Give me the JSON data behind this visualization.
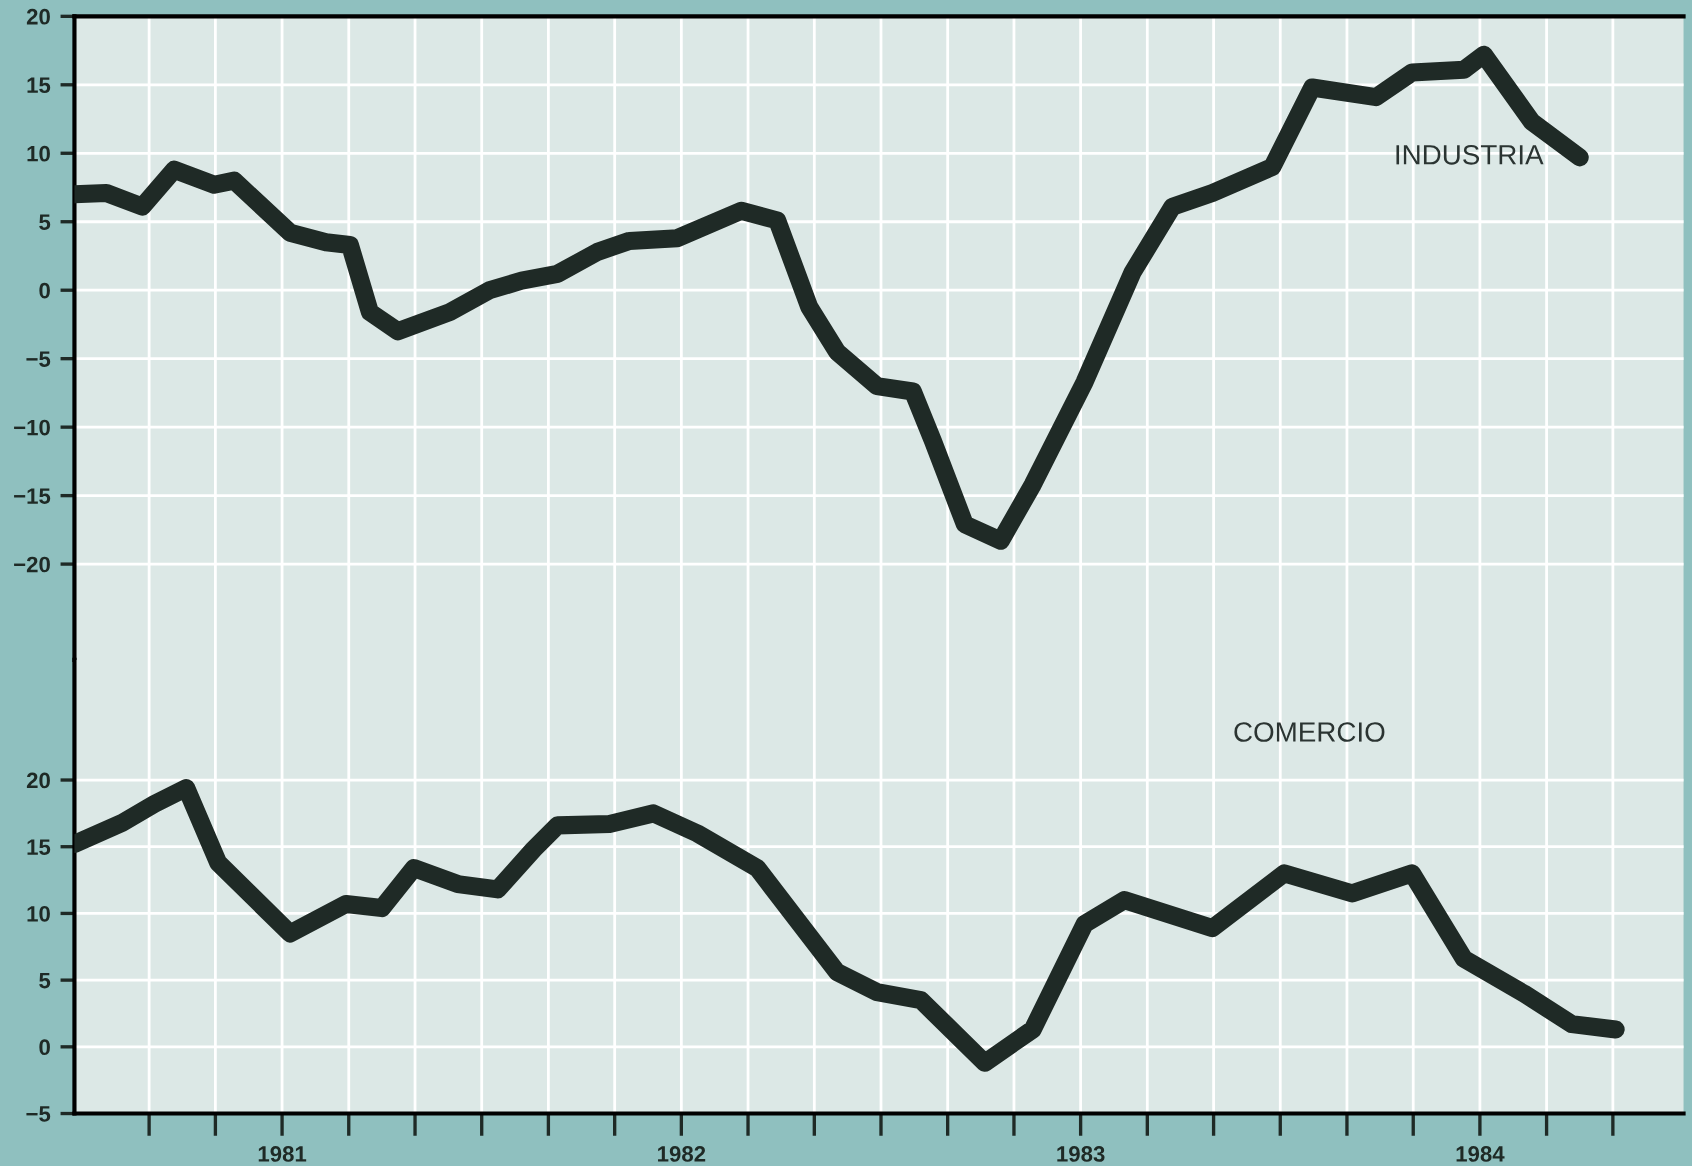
{
  "chart_data": [
    {
      "type": "line",
      "grid": true,
      "tick_labels": "y",
      "xlim": [
        1980.48,
        1984.51
      ],
      "ylim": [
        -27,
        20
      ],
      "yticks": [
        20,
        15,
        10,
        5,
        0,
        -5,
        -10,
        -15,
        -20
      ],
      "xticks": [
        {
          "value": 1980.667,
          "label": null
        },
        {
          "value": 1980.833,
          "label": null
        },
        {
          "value": 1981,
          "label": null
        },
        {
          "value": 1981.167,
          "label": null
        },
        {
          "value": 1981.333,
          "label": null
        },
        {
          "value": 1981.5,
          "label": null
        },
        {
          "value": 1981.667,
          "label": null
        },
        {
          "value": 1981.833,
          "label": null
        },
        {
          "value": 1982,
          "label": null
        },
        {
          "value": 1982.167,
          "label": null
        },
        {
          "value": 1982.333,
          "label": null
        },
        {
          "value": 1982.5,
          "label": null
        },
        {
          "value": 1982.667,
          "label": null
        },
        {
          "value": 1982.833,
          "label": null
        },
        {
          "value": 1983,
          "label": null
        },
        {
          "value": 1983.167,
          "label": null
        },
        {
          "value": 1983.333,
          "label": null
        },
        {
          "value": 1983.5,
          "label": null
        },
        {
          "value": 1983.667,
          "label": null
        },
        {
          "value": 1983.833,
          "label": null
        },
        {
          "value": 1984,
          "label": null
        },
        {
          "value": 1984.167,
          "label": null
        },
        {
          "value": 1984.333,
          "label": null
        }
      ],
      "series": [
        {
          "name": "INDUSTRIA",
          "color": "#1f2a26",
          "x": [
            1980.48,
            1980.56,
            1980.65,
            1980.73,
            1980.83,
            1980.88,
            1981.02,
            1981.11,
            1981.17,
            1981.22,
            1981.29,
            1981.42,
            1981.52,
            1981.6,
            1981.69,
            1981.79,
            1981.87,
            1981.99,
            1982.15,
            1982.24,
            1982.32,
            1982.39,
            1982.49,
            1982.58,
            1982.63,
            1982.71,
            1982.8,
            1982.88,
            1983.01,
            1983.13,
            1983.23,
            1983.33,
            1983.48,
            1983.58,
            1983.74,
            1983.83,
            1983.96,
            1984.01,
            1984.13,
            1984.25
          ],
          "values": [
            7.0,
            7.1,
            6.1,
            8.8,
            7.7,
            8.0,
            4.2,
            3.5,
            3.3,
            -1.6,
            -3.0,
            -1.6,
            0,
            0.7,
            1.2,
            2.8,
            3.6,
            3.8,
            5.8,
            5.1,
            -1.2,
            -4.5,
            -7.0,
            -7.4,
            -11.0,
            -17.1,
            -18.3,
            -14.2,
            -6.7,
            1.3,
            6.1,
            7.1,
            9.0,
            14.8,
            14.1,
            15.9,
            16.1,
            17.2,
            12.3,
            9.7
          ]
        }
      ]
    },
    {
      "type": "line",
      "grid": true,
      "xlim": [
        1980.48,
        1984.51
      ],
      "ylim": [
        -5,
        29
      ],
      "yticks": [
        20,
        15,
        10,
        5,
        0,
        -5
      ],
      "xticks": [
        {
          "value": 1980.667,
          "label": null
        },
        {
          "value": 1980.833,
          "label": null
        },
        {
          "value": 1981,
          "label": "1981"
        },
        {
          "value": 1981.167,
          "label": null
        },
        {
          "value": 1981.333,
          "label": null
        },
        {
          "value": 1981.5,
          "label": null
        },
        {
          "value": 1981.667,
          "label": null
        },
        {
          "value": 1981.833,
          "label": null
        },
        {
          "value": 1982,
          "label": "1982"
        },
        {
          "value": 1982.167,
          "label": null
        },
        {
          "value": 1982.333,
          "label": null
        },
        {
          "value": 1982.5,
          "label": null
        },
        {
          "value": 1982.667,
          "label": null
        },
        {
          "value": 1982.833,
          "label": null
        },
        {
          "value": 1983,
          "label": "1983"
        },
        {
          "value": 1983.167,
          "label": null
        },
        {
          "value": 1983.333,
          "label": null
        },
        {
          "value": 1983.5,
          "label": null
        },
        {
          "value": 1983.667,
          "label": null
        },
        {
          "value": 1983.833,
          "label": null
        },
        {
          "value": 1984,
          "label": "1984"
        },
        {
          "value": 1984.167,
          "label": null
        },
        {
          "value": 1984.333,
          "label": null
        }
      ],
      "series": [
        {
          "name": "COMERCIO",
          "color": "#1f2a26",
          "x": [
            1980.48,
            1980.6,
            1980.68,
            1980.76,
            1980.84,
            1981.02,
            1981.16,
            1981.25,
            1981.33,
            1981.44,
            1981.54,
            1981.63,
            1981.69,
            1981.82,
            1981.93,
            1982.04,
            1982.19,
            1982.39,
            1982.49,
            1982.6,
            1982.76,
            1982.88,
            1983.01,
            1983.11,
            1983.33,
            1983.51,
            1983.68,
            1983.83,
            1983.96,
            1984.11,
            1984.23,
            1984.34
          ],
          "values": [
            15.2,
            16.8,
            18.2,
            19.4,
            13.8,
            8.5,
            10.7,
            10.4,
            13.4,
            12.2,
            11.8,
            14.8,
            16.6,
            16.7,
            17.5,
            16.0,
            13.4,
            5.6,
            4.1,
            3.5,
            -1.2,
            1.3,
            9.2,
            11.0,
            8.9,
            13.0,
            11.5,
            13.0,
            6.6,
            4.0,
            1.7,
            1.3
          ]
        }
      ]
    }
  ]
}
